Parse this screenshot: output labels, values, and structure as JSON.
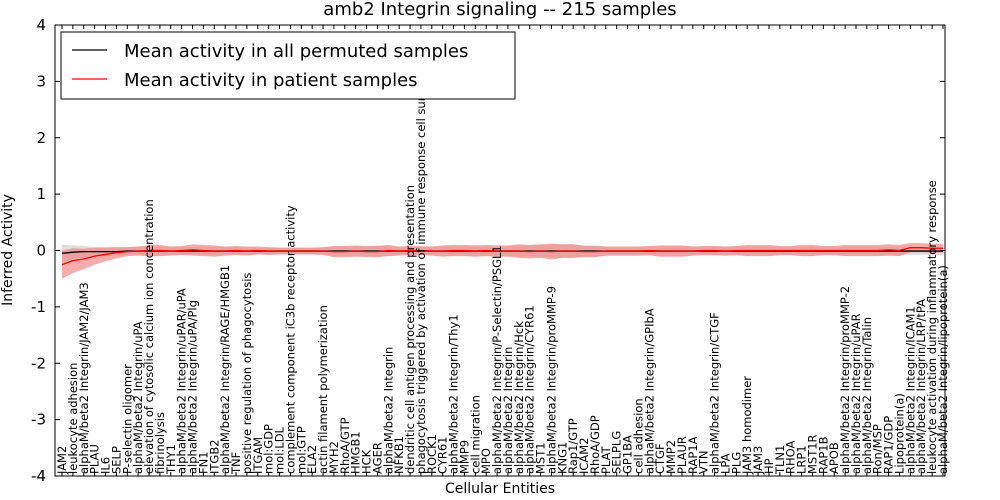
{
  "chart_data": {
    "type": "line",
    "title": "amb2 Integrin signaling -- 215 samples",
    "xlabel": "Cellular Entities",
    "ylabel": "Inferred Activity",
    "ylim": [
      -4,
      4
    ],
    "yticks": [
      -4,
      -3,
      -2,
      -1,
      0,
      1,
      2,
      3,
      4
    ],
    "grid": false,
    "legend": {
      "placement": "top-left",
      "entries": [
        {
          "label": "Mean activity in all permuted samples",
          "color": "#000000"
        },
        {
          "label": "Mean activity in patient samples",
          "color": "#ff0000"
        }
      ]
    },
    "categories": [
      "JAM2",
      "leukocyte adhesion",
      "alphaM/beta2 Integrin/JAM2/JAM3",
      "PLAU",
      "IL6",
      "SELP",
      "P-selectin oligomer",
      "alphaM/beta2 Integrin/uPA",
      "elevation of cytosolic calcium ion concentration",
      "fibrinolysis",
      "THY1",
      "alphaM/beta2 Integrin/uPAR/uPA",
      "alphaM/beta2 Integrin/uPA/Plg",
      "FN1",
      "ITGB2",
      "alphaM/beta2 Integrin/RAGE/HMGB1",
      "TNF",
      "positive regulation of phagocytosis",
      "ITGAM",
      "mol:GDP",
      "mol:LDL",
      "complement component iC3b receptor activity",
      "mol:GTP",
      "ELA2",
      "actin filament polymerization",
      "MYH2",
      "RhoA/GTP",
      "HMGB1",
      "HCK",
      "AGER",
      "alphaM/beta2 Integrin",
      "NFKB1",
      "dendritic cell antigen processing and presentation",
      "phagocytosis triggered by activation of immune response cell surface",
      "ROCK1",
      "CYR61",
      "alphaM/beta2 Integrin/Thy1",
      "MMP9",
      "cell migration",
      "MPO",
      "alphaM/beta2 Integrin/P-Selectin/PSGL1",
      "alphaM/beta2 Integrin",
      "alphaM/beta2 Integrin/Hck",
      "alphaM/beta2 Integrin/CYR61",
      "MST1",
      "alphaM/beta2 Integrin/proMMP-9",
      "KNG1",
      "Rap1/GTP",
      "ICAM2",
      "RhoA/GDP",
      "PLAT",
      "SELPLG",
      "GP1BA",
      "cell adhesion",
      "alphaM/beta2 Integrin/GPIbA",
      "CTGF",
      "MMP2",
      "PLAUR",
      "RAP1A",
      "VTN",
      "alphaM/beta2 Integrin/CTGF",
      "LPA",
      "PLG",
      "JAM3 homodimer",
      "JAM3",
      "HP",
      "TLN1",
      "RHOA",
      "LRP1",
      "MST1R",
      "RAP1B",
      "APOB",
      "alphaM/beta2 Integrin/proMMP-2",
      "alphaM/beta2 Integrin/uPAR",
      "alphaM/beta2 Integrin/Talin",
      "Ron/MSP",
      "RAP1/GDP",
      "Lipoprotein(a)",
      "alphaM/beta2 Integrin/ICAM1",
      "alphaM/beta2 Integrin/LRP/tPA",
      "leukocyte activation during inflammatory response",
      "alphaM/beta2 Integrin/lipoprotein(a)"
    ],
    "series": [
      {
        "name": "Mean activity in all permuted samples",
        "color": "#000000",
        "band_color": "#c8c8c8",
        "values": [
          -0.05,
          -0.03,
          -0.02,
          -0.02,
          -0.02,
          -0.02,
          -0.01,
          -0.01,
          -0.01,
          -0.01,
          -0.01,
          -0.01,
          -0.01,
          -0.01,
          -0.01,
          -0.01,
          -0.01,
          -0.01,
          -0.01,
          -0.01,
          -0.01,
          -0.01,
          -0.01,
          -0.01,
          -0.01,
          -0.01,
          -0.01,
          -0.01,
          -0.01,
          -0.01,
          -0.01,
          -0.01,
          -0.01,
          -0.01,
          -0.01,
          -0.01,
          -0.01,
          -0.01,
          -0.01,
          -0.01,
          -0.01,
          -0.01,
          -0.01,
          -0.01,
          -0.01,
          -0.01,
          -0.01,
          -0.01,
          -0.01,
          -0.01,
          -0.01,
          -0.01,
          -0.01,
          -0.01,
          -0.01,
          -0.01,
          -0.01,
          -0.01,
          -0.01,
          -0.01,
          -0.01,
          -0.01,
          -0.01,
          -0.01,
          -0.01,
          -0.01,
          -0.01,
          -0.01,
          -0.01,
          -0.01,
          -0.01,
          -0.01,
          -0.01,
          -0.01,
          -0.01,
          -0.01,
          -0.01,
          -0.01,
          -0.01,
          -0.01,
          -0.01,
          -0.01
        ],
        "band": [
          0.15,
          0.12,
          0.1,
          0.08,
          0.08,
          0.08,
          0.07,
          0.07,
          0.08,
          0.08,
          0.07,
          0.07,
          0.07,
          0.07,
          0.07,
          0.07,
          0.07,
          0.07,
          0.06,
          0.06,
          0.06,
          0.06,
          0.06,
          0.06,
          0.06,
          0.08,
          0.08,
          0.08,
          0.08,
          0.1,
          0.08,
          0.07,
          0.07,
          0.07,
          0.07,
          0.08,
          0.08,
          0.08,
          0.08,
          0.08,
          0.08,
          0.08,
          0.1,
          0.1,
          0.1,
          0.12,
          0.12,
          0.12,
          0.1,
          0.1,
          0.08,
          0.08,
          0.08,
          0.08,
          0.08,
          0.08,
          0.08,
          0.08,
          0.08,
          0.08,
          0.08,
          0.08,
          0.08,
          0.08,
          0.08,
          0.08,
          0.08,
          0.08,
          0.08,
          0.08,
          0.08,
          0.08,
          0.08,
          0.08,
          0.08,
          0.08,
          0.08,
          0.08,
          0.07,
          0.07,
          0.07,
          0.07
        ]
      },
      {
        "name": "Mean activity in patient samples",
        "color": "#ff0000",
        "band_color": "#f28080",
        "values": [
          -0.25,
          -0.18,
          -0.15,
          -0.1,
          -0.07,
          -0.04,
          -0.02,
          -0.01,
          0.0,
          0.0,
          -0.01,
          0.0,
          0.01,
          0.0,
          -0.01,
          -0.01,
          0.0,
          -0.01,
          0.0,
          -0.01,
          -0.01,
          -0.01,
          -0.01,
          -0.01,
          -0.01,
          -0.02,
          -0.02,
          -0.01,
          -0.02,
          -0.02,
          0.0,
          -0.01,
          0.0,
          0.0,
          -0.01,
          -0.01,
          0.0,
          0.0,
          -0.01,
          0.0,
          -0.01,
          -0.01,
          -0.01,
          -0.02,
          -0.01,
          -0.02,
          -0.01,
          -0.01,
          -0.02,
          -0.02,
          -0.01,
          -0.01,
          -0.01,
          -0.01,
          0.0,
          -0.01,
          -0.01,
          -0.01,
          -0.01,
          0.0,
          0.0,
          -0.01,
          0.0,
          0.0,
          0.0,
          0.0,
          0.0,
          0.0,
          0.0,
          0.0,
          0.0,
          0.0,
          0.0,
          0.0,
          0.0,
          0.0,
          0.01,
          0.0,
          0.05,
          0.05,
          0.04,
          0.04
        ],
        "band": [
          0.25,
          0.22,
          0.18,
          0.15,
          0.12,
          0.1,
          0.08,
          0.08,
          0.1,
          0.1,
          0.08,
          0.08,
          0.1,
          0.1,
          0.1,
          0.08,
          0.08,
          0.08,
          0.07,
          0.07,
          0.06,
          0.06,
          0.06,
          0.06,
          0.07,
          0.1,
          0.1,
          0.1,
          0.1,
          0.1,
          0.1,
          0.08,
          0.08,
          0.08,
          0.08,
          0.1,
          0.1,
          0.1,
          0.1,
          0.1,
          0.1,
          0.1,
          0.12,
          0.12,
          0.12,
          0.14,
          0.12,
          0.12,
          0.1,
          0.1,
          0.08,
          0.08,
          0.08,
          0.08,
          0.08,
          0.1,
          0.1,
          0.1,
          0.08,
          0.08,
          0.08,
          0.08,
          0.08,
          0.1,
          0.1,
          0.1,
          0.08,
          0.08,
          0.1,
          0.1,
          0.08,
          0.08,
          0.1,
          0.1,
          0.1,
          0.1,
          0.1,
          0.1,
          0.08,
          0.08,
          0.08,
          0.08
        ]
      }
    ]
  }
}
